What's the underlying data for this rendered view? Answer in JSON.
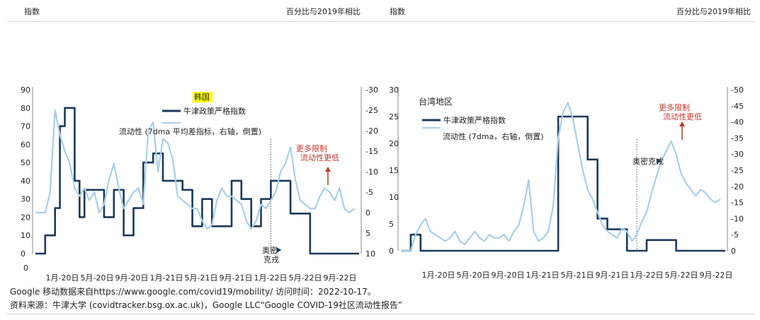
{
  "header": {
    "left_title": "指数",
    "left_right_label": "百分比与2019年相比",
    "right_title": "指数",
    "right_right_label": "百分比与2019年相比"
  },
  "footer": {
    "line1": "Google 移动数据来自https://www.google.com/covid19/mobility/ 访问时间：2022-10-17。",
    "line2": "资料来源：牛津大学 (covidtracker.bsg.ox.ac.uk)，Google LLC“Google COVID-19社区流动性报告”"
  },
  "colors": {
    "stringency": "#1b3a5c",
    "mobility": "#a9cfe9",
    "annotation": "#c0392b",
    "highlight": "#ffff00"
  },
  "chart_data": [
    {
      "type": "line",
      "title": "韩国",
      "x_ticks": [
        "1月-20日",
        "5月-20日",
        "9月-20日",
        "1月-21日",
        "5月-21日",
        "9月-21日",
        "1月-22日",
        "5月-22日",
        "9月-22日"
      ],
      "y_left_ticks": [
        "90",
        "80",
        "70",
        "60",
        "50",
        "40",
        "30",
        "20",
        "10",
        "0"
      ],
      "y_right_ticks": [
        "-30",
        "-25",
        "-20",
        "-15",
        "-10",
        "-5",
        "0",
        "5",
        "10"
      ],
      "y_left_range": [
        0,
        90
      ],
      "y_right_range": [
        -30,
        10
      ],
      "y_right_inverted": true,
      "x_range": [
        0,
        33
      ],
      "legend": [
        "牛津政策严格指数",
        "流动性 (7dma 平均差指标，右轴，倒置)"
      ],
      "annotation_up": [
        "更多限制",
        "流动性更低"
      ],
      "event_x": 24.0,
      "event_label": [
        "奥密",
        "克戎"
      ],
      "series": [
        {
          "name": "牛津政策严格指数",
          "axis": "left",
          "step": true,
          "points": [
            [
              0,
              0
            ],
            [
              1,
              0
            ],
            [
              1,
              10
            ],
            [
              2,
              10
            ],
            [
              2,
              25
            ],
            [
              2.5,
              25
            ],
            [
              2.5,
              70
            ],
            [
              3,
              70
            ],
            [
              3,
              80
            ],
            [
              3.5,
              80
            ],
            [
              3.5,
              80
            ],
            [
              4,
              80
            ],
            [
              4,
              40
            ],
            [
              4.5,
              40
            ],
            [
              4.5,
              20
            ],
            [
              5,
              20
            ],
            [
              5,
              35
            ],
            [
              7,
              35
            ],
            [
              7,
              20
            ],
            [
              8,
              20
            ],
            [
              8,
              35
            ],
            [
              9,
              35
            ],
            [
              9,
              10
            ],
            [
              10,
              10
            ],
            [
              10,
              25
            ],
            [
              11,
              25
            ],
            [
              11,
              50
            ],
            [
              12,
              50
            ],
            [
              12,
              55
            ],
            [
              13,
              55
            ],
            [
              13,
              40
            ],
            [
              15,
              40
            ],
            [
              15,
              35
            ],
            [
              16,
              35
            ],
            [
              16,
              15
            ],
            [
              17,
              15
            ],
            [
              17,
              30
            ],
            [
              18,
              30
            ],
            [
              18,
              15
            ],
            [
              19,
              15
            ],
            [
              19,
              15
            ],
            [
              20,
              15
            ],
            [
              20,
              40
            ],
            [
              21,
              40
            ],
            [
              21,
              30
            ],
            [
              22,
              30
            ],
            [
              22,
              15
            ],
            [
              23,
              15
            ],
            [
              23,
              30
            ],
            [
              24,
              30
            ],
            [
              24,
              40
            ],
            [
              25,
              40
            ],
            [
              25,
              40
            ],
            [
              26,
              40
            ],
            [
              26,
              22
            ],
            [
              27,
              22
            ],
            [
              27,
              22
            ],
            [
              28,
              22
            ],
            [
              28,
              0
            ],
            [
              33,
              0
            ]
          ]
        },
        {
          "name": "流动性",
          "axis": "right",
          "points": [
            [
              0,
              0
            ],
            [
              1,
              0
            ],
            [
              1.5,
              -5
            ],
            [
              2,
              -25
            ],
            [
              2.5,
              -19
            ],
            [
              3,
              -15
            ],
            [
              3.5,
              -12
            ],
            [
              4,
              -6
            ],
            [
              4.5,
              -4
            ],
            [
              5,
              -6
            ],
            [
              5.5,
              -3
            ],
            [
              6,
              -5
            ],
            [
              6.5,
              0
            ],
            [
              7,
              -2
            ],
            [
              7.5,
              -8
            ],
            [
              8,
              -12
            ],
            [
              8.5,
              -6
            ],
            [
              9,
              -1
            ],
            [
              9.5,
              -3
            ],
            [
              10,
              -5
            ],
            [
              10.5,
              -6
            ],
            [
              11,
              -2
            ],
            [
              11.5,
              -20
            ],
            [
              12,
              -22
            ],
            [
              12.5,
              -10
            ],
            [
              13,
              -18
            ],
            [
              13.5,
              -17
            ],
            [
              14,
              -13
            ],
            [
              14.5,
              -4
            ],
            [
              15,
              -3
            ],
            [
              15.5,
              -2
            ],
            [
              16,
              -1
            ],
            [
              16.5,
              -1
            ],
            [
              17,
              2
            ],
            [
              17.5,
              4
            ],
            [
              18,
              3
            ],
            [
              18.5,
              -3
            ],
            [
              19,
              -6
            ],
            [
              19.5,
              -4
            ],
            [
              20,
              -4
            ],
            [
              20.5,
              -3
            ],
            [
              21,
              -2
            ],
            [
              21.5,
              2
            ],
            [
              22,
              4
            ],
            [
              22.5,
              2
            ],
            [
              23,
              -2
            ],
            [
              23.5,
              -1
            ],
            [
              24,
              -3
            ],
            [
              24.5,
              -5
            ],
            [
              25,
              -10
            ],
            [
              25.5,
              -12
            ],
            [
              26,
              -16
            ],
            [
              26.5,
              -8
            ],
            [
              27,
              -3
            ],
            [
              27.5,
              -2
            ],
            [
              28,
              -1
            ],
            [
              28.5,
              -1
            ],
            [
              29,
              -4
            ],
            [
              29.5,
              -6
            ],
            [
              30,
              -5
            ],
            [
              30.5,
              -3
            ],
            [
              31,
              -6
            ],
            [
              31.5,
              -1
            ],
            [
              32,
              0
            ],
            [
              32.5,
              -1
            ]
          ]
        }
      ]
    },
    {
      "type": "line",
      "title": "台湾地区",
      "x_ticks": [
        "1月-20日",
        "5月-20日",
        "9月-20日",
        "1月-21日",
        "5月-21日",
        "9月-21日",
        "1月-22日",
        "5月-22日",
        "9月-22日"
      ],
      "y_left_ticks": [
        "30",
        "25",
        "20",
        "15",
        "10",
        "5",
        "0"
      ],
      "y_right_ticks": [
        "-50",
        "-45",
        "-40",
        "-35",
        "-30",
        "-25",
        "-20",
        "-15",
        "-10",
        "-5",
        "0"
      ],
      "y_left_range": [
        0,
        30
      ],
      "y_right_range": [
        -50,
        0
      ],
      "y_right_inverted": true,
      "x_range": [
        0,
        33
      ],
      "legend": [
        "牛津政策严格指数",
        "流动性 (7dma，右轴，倒置)"
      ],
      "annotation_up": [
        "更多限制",
        "流动性更低"
      ],
      "event_x": 24.0,
      "event_label": [
        "奥密克戎"
      ],
      "series": [
        {
          "name": "牛津政策严格指数",
          "axis": "left",
          "step": true,
          "points": [
            [
              0,
              0
            ],
            [
              1,
              0
            ],
            [
              1,
              3
            ],
            [
              2,
              3
            ],
            [
              2,
              0
            ],
            [
              12,
              0
            ],
            [
              12,
              0
            ],
            [
              16,
              0
            ],
            [
              16,
              25
            ],
            [
              19,
              25
            ],
            [
              19,
              17
            ],
            [
              20,
              17
            ],
            [
              20,
              6
            ],
            [
              21,
              6
            ],
            [
              21,
              4
            ],
            [
              23,
              4
            ],
            [
              23,
              0
            ],
            [
              25,
              0
            ],
            [
              25,
              2
            ],
            [
              28,
              2
            ],
            [
              28,
              0
            ],
            [
              33,
              0
            ]
          ]
        },
        {
          "name": "流动性",
          "axis": "right",
          "points": [
            [
              0,
              0
            ],
            [
              1,
              0
            ],
            [
              1.5,
              -5
            ],
            [
              2,
              -8
            ],
            [
              2.5,
              -10
            ],
            [
              3,
              -6
            ],
            [
              3.5,
              -5
            ],
            [
              4,
              -4
            ],
            [
              4.5,
              -3
            ],
            [
              5,
              -4
            ],
            [
              5.5,
              -6
            ],
            [
              6,
              -3
            ],
            [
              6.5,
              -2
            ],
            [
              7,
              -4
            ],
            [
              7.5,
              -6
            ],
            [
              8,
              -4
            ],
            [
              8.5,
              -3
            ],
            [
              9,
              -5
            ],
            [
              9.5,
              -4
            ],
            [
              10,
              -4
            ],
            [
              10.5,
              -5
            ],
            [
              11,
              -3
            ],
            [
              11.5,
              -6
            ],
            [
              12,
              -8
            ],
            [
              12.5,
              -14
            ],
            [
              13,
              -22
            ],
            [
              13.5,
              -6
            ],
            [
              14,
              -3
            ],
            [
              14.5,
              -4
            ],
            [
              15,
              -6
            ],
            [
              15.5,
              -14
            ],
            [
              16,
              -35
            ],
            [
              16.5,
              -43
            ],
            [
              17,
              -46
            ],
            [
              17.5,
              -41
            ],
            [
              18,
              -33
            ],
            [
              18.5,
              -25
            ],
            [
              19,
              -19
            ],
            [
              19.5,
              -16
            ],
            [
              20,
              -12
            ],
            [
              20.5,
              -8
            ],
            [
              21,
              -6
            ],
            [
              21.5,
              -5
            ],
            [
              22,
              -4
            ],
            [
              22.5,
              -7
            ],
            [
              23,
              -6
            ],
            [
              23.5,
              -3
            ],
            [
              24,
              -5
            ],
            [
              24.5,
              -9
            ],
            [
              25,
              -12
            ],
            [
              25.5,
              -18
            ],
            [
              26,
              -23
            ],
            [
              26.5,
              -28
            ],
            [
              27,
              -31
            ],
            [
              27.5,
              -34
            ],
            [
              28,
              -30
            ],
            [
              28.5,
              -24
            ],
            [
              29,
              -21
            ],
            [
              29.5,
              -19
            ],
            [
              30,
              -17
            ],
            [
              30.5,
              -19
            ],
            [
              31,
              -18
            ],
            [
              31.5,
              -16
            ],
            [
              32,
              -15
            ],
            [
              32.5,
              -16
            ]
          ]
        }
      ]
    }
  ]
}
